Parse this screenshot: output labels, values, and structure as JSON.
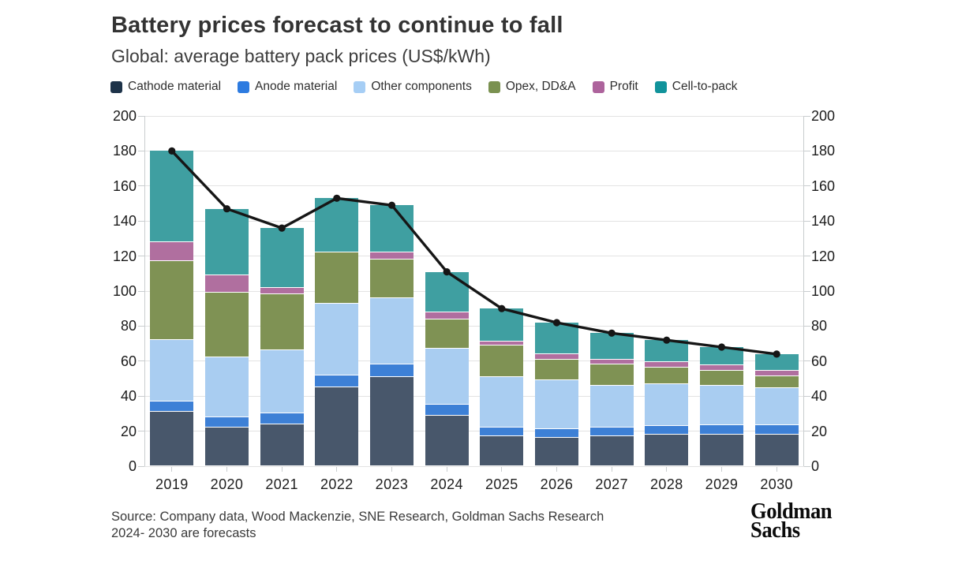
{
  "header": {
    "title": "Battery prices forecast to continue to fall",
    "subtitle": "Global: average battery pack prices (US$/kWh)"
  },
  "chart_data": {
    "type": "bar",
    "subtype": "stacked-bar-with-line",
    "title": "Battery prices forecast to continue to fall",
    "subtitle": "Global: average battery pack prices (US$/kWh)",
    "xlabel": "",
    "ylabel": "US$/kWh",
    "ylim": [
      0,
      200
    ],
    "yticks": [
      0,
      20,
      40,
      60,
      80,
      100,
      120,
      140,
      160,
      180,
      200
    ],
    "grid": true,
    "legend_position": "top",
    "dual_axis_labels": true,
    "categories": [
      "2019",
      "2020",
      "2021",
      "2022",
      "2023",
      "2024",
      "2025",
      "2026",
      "2027",
      "2028",
      "2029",
      "2030"
    ],
    "series": [
      {
        "name": "Cathode material",
        "color": "#48576B",
        "swatch": "#1D3349",
        "values": [
          31,
          22,
          24,
          45,
          51,
          29,
          17,
          16,
          17,
          18,
          18,
          18
        ]
      },
      {
        "name": "Anode material",
        "color": "#3D80D6",
        "swatch": "#2D7BE0",
        "values": [
          6,
          6,
          6,
          7,
          7,
          6,
          5,
          5,
          5,
          5,
          5.5,
          5.5
        ]
      },
      {
        "name": "Other components",
        "color": "#A9CDF1",
        "swatch": "#A6CEF5",
        "values": [
          35,
          34,
          36,
          41,
          38,
          32,
          29,
          28,
          24,
          24,
          22.5,
          21
        ]
      },
      {
        "name": "Opex, DD&A",
        "color": "#7F9254",
        "swatch": "#7A9150",
        "values": [
          45,
          37,
          32,
          29,
          22,
          17,
          18,
          12,
          12,
          9.5,
          8.5,
          7
        ]
      },
      {
        "name": "Profit",
        "color": "#B06F9F",
        "swatch": "#AD639C",
        "values": [
          11,
          10,
          4,
          0,
          4,
          4,
          2,
          3,
          3,
          3,
          3,
          3
        ]
      },
      {
        "name": "Cell-to-pack",
        "color": "#3F9FA1",
        "swatch": "#11939B",
        "values": [
          52,
          38,
          34,
          31,
          27,
          23,
          19,
          18,
          15,
          12.5,
          10.5,
          9.5
        ]
      }
    ],
    "line_series": {
      "name": "Average battery pack price",
      "color": "#161616",
      "values": [
        180,
        147,
        136,
        153,
        149,
        111,
        90,
        82,
        76,
        72,
        68,
        64
      ]
    }
  },
  "footer": {
    "source_line1": "Source: Company data, Wood Mackenzie, SNE Research, Goldman Sachs Research",
    "source_line2": "2024- 2030 are forecasts",
    "logo_line1": "Goldman",
    "logo_line2": "Sachs"
  }
}
